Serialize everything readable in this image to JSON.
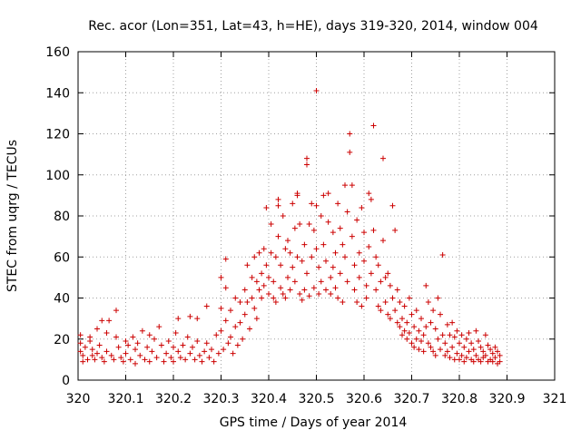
{
  "chart_data": {
    "type": "scatter",
    "title": "Rec. acor (Lon=351, Lat=43, h=HE), days 319-320, 2014, window 004",
    "xlabel": "GPS time / Days of year 2014",
    "ylabel": "STEC from uqrg / TECUs",
    "xlim": [
      320,
      321
    ],
    "ylim": [
      0,
      160
    ],
    "grid": true,
    "legend": "none",
    "marker": "+",
    "color": "#cc0000",
    "x_ticks": [
      320,
      320.1,
      320.2,
      320.3,
      320.4,
      320.5,
      320.6,
      320.7,
      320.8,
      320.9,
      321
    ],
    "x_tick_labels": [
      "320",
      "320.1",
      "320.2",
      "320.3",
      "320.4",
      "320.5",
      "320.6",
      "320.7",
      "320.8",
      "320.9",
      "321"
    ],
    "y_ticks": [
      0,
      20,
      40,
      60,
      80,
      100,
      120,
      140,
      160
    ],
    "y_tick_labels": [
      "0",
      "20",
      "40",
      "60",
      "80",
      "100",
      "120",
      "140",
      "160"
    ],
    "series": [
      {
        "name": "STEC",
        "points": [
          [
            320.005,
            22
          ],
          [
            320.005,
            18
          ],
          [
            320.005,
            14
          ],
          [
            320.01,
            12
          ],
          [
            320.01,
            9
          ],
          [
            320.015,
            16
          ],
          [
            320.02,
            10
          ],
          [
            320.025,
            21
          ],
          [
            320.025,
            19
          ],
          [
            320.03,
            15
          ],
          [
            320.03,
            12
          ],
          [
            320.035,
            10
          ],
          [
            320.04,
            25
          ],
          [
            320.04,
            13
          ],
          [
            320.045,
            17
          ],
          [
            320.05,
            29
          ],
          [
            320.05,
            11
          ],
          [
            320.055,
            9
          ],
          [
            320.06,
            23
          ],
          [
            320.06,
            14
          ],
          [
            320.065,
            29
          ],
          [
            320.07,
            12
          ],
          [
            320.075,
            10
          ],
          [
            320.08,
            34
          ],
          [
            320.08,
            21
          ],
          [
            320.085,
            16
          ],
          [
            320.09,
            11
          ],
          [
            320.095,
            9
          ],
          [
            320.1,
            19
          ],
          [
            320.1,
            13
          ],
          [
            320.105,
            17
          ],
          [
            320.11,
            10
          ],
          [
            320.115,
            21
          ],
          [
            320.12,
            15
          ],
          [
            320.12,
            8
          ],
          [
            320.125,
            18
          ],
          [
            320.13,
            12
          ],
          [
            320.135,
            24
          ],
          [
            320.14,
            10
          ],
          [
            320.145,
            16
          ],
          [
            320.15,
            22
          ],
          [
            320.15,
            9
          ],
          [
            320.155,
            14
          ],
          [
            320.16,
            20
          ],
          [
            320.165,
            11
          ],
          [
            320.17,
            26
          ],
          [
            320.175,
            17
          ],
          [
            320.18,
            9
          ],
          [
            320.185,
            13
          ],
          [
            320.19,
            19
          ],
          [
            320.195,
            11
          ],
          [
            320.2,
            16
          ],
          [
            320.2,
            9
          ],
          [
            320.205,
            23
          ],
          [
            320.21,
            30
          ],
          [
            320.21,
            14
          ],
          [
            320.215,
            11
          ],
          [
            320.22,
            17
          ],
          [
            320.225,
            10
          ],
          [
            320.23,
            21
          ],
          [
            320.235,
            31
          ],
          [
            320.235,
            13
          ],
          [
            320.24,
            16
          ],
          [
            320.245,
            10
          ],
          [
            320.25,
            30
          ],
          [
            320.25,
            19
          ],
          [
            320.255,
            12
          ],
          [
            320.26,
            9
          ],
          [
            320.265,
            14
          ],
          [
            320.27,
            36
          ],
          [
            320.27,
            18
          ],
          [
            320.275,
            11
          ],
          [
            320.28,
            15
          ],
          [
            320.285,
            9
          ],
          [
            320.29,
            22
          ],
          [
            320.295,
            13
          ],
          [
            320.3,
            50
          ],
          [
            320.3,
            35
          ],
          [
            320.3,
            24
          ],
          [
            320.305,
            15
          ],
          [
            320.31,
            59
          ],
          [
            320.31,
            45
          ],
          [
            320.31,
            29
          ],
          [
            320.315,
            18
          ],
          [
            320.32,
            34
          ],
          [
            320.32,
            21
          ],
          [
            320.325,
            13
          ],
          [
            320.33,
            40
          ],
          [
            320.33,
            26
          ],
          [
            320.335,
            17
          ],
          [
            320.34,
            38
          ],
          [
            320.34,
            28
          ],
          [
            320.345,
            20
          ],
          [
            320.35,
            44
          ],
          [
            320.35,
            32
          ],
          [
            320.355,
            56
          ],
          [
            320.355,
            38
          ],
          [
            320.36,
            25
          ],
          [
            320.365,
            50
          ],
          [
            320.365,
            40
          ],
          [
            320.37,
            60
          ],
          [
            320.37,
            35
          ],
          [
            320.375,
            48
          ],
          [
            320.375,
            30
          ],
          [
            320.38,
            62
          ],
          [
            320.38,
            44
          ],
          [
            320.385,
            52
          ],
          [
            320.385,
            40
          ],
          [
            320.39,
            64
          ],
          [
            320.39,
            46
          ],
          [
            320.395,
            84
          ],
          [
            320.395,
            56
          ],
          [
            320.4,
            42
          ],
          [
            320.4,
            50
          ],
          [
            320.405,
            76
          ],
          [
            320.405,
            62
          ],
          [
            320.41,
            48
          ],
          [
            320.41,
            40
          ],
          [
            320.415,
            60
          ],
          [
            320.415,
            38
          ],
          [
            320.42,
            88
          ],
          [
            320.42,
            85
          ],
          [
            320.42,
            70
          ],
          [
            320.425,
            56
          ],
          [
            320.425,
            45
          ],
          [
            320.43,
            80
          ],
          [
            320.43,
            42
          ],
          [
            320.435,
            64
          ],
          [
            320.435,
            40
          ],
          [
            320.44,
            68
          ],
          [
            320.44,
            50
          ],
          [
            320.445,
            62
          ],
          [
            320.445,
            44
          ],
          [
            320.45,
            86
          ],
          [
            320.45,
            55
          ],
          [
            320.455,
            74
          ],
          [
            320.455,
            48
          ],
          [
            320.46,
            91
          ],
          [
            320.46,
            90
          ],
          [
            320.46,
            60
          ],
          [
            320.465,
            76
          ],
          [
            320.465,
            42
          ],
          [
            320.47,
            58
          ],
          [
            320.47,
            39
          ],
          [
            320.475,
            66
          ],
          [
            320.475,
            44
          ],
          [
            320.48,
            108
          ],
          [
            320.48,
            105
          ],
          [
            320.48,
            52
          ],
          [
            320.485,
            76
          ],
          [
            320.485,
            41
          ],
          [
            320.49,
            86
          ],
          [
            320.49,
            60
          ],
          [
            320.495,
            73
          ],
          [
            320.495,
            45
          ],
          [
            320.5,
            141
          ],
          [
            320.5,
            85
          ],
          [
            320.5,
            64
          ],
          [
            320.505,
            55
          ],
          [
            320.505,
            42
          ],
          [
            320.51,
            80
          ],
          [
            320.51,
            48
          ],
          [
            320.515,
            90
          ],
          [
            320.515,
            66
          ],
          [
            320.52,
            44
          ],
          [
            320.52,
            58
          ],
          [
            320.525,
            91
          ],
          [
            320.525,
            77
          ],
          [
            320.53,
            50
          ],
          [
            320.53,
            42
          ],
          [
            320.535,
            72
          ],
          [
            320.535,
            55
          ],
          [
            320.54,
            62
          ],
          [
            320.54,
            45
          ],
          [
            320.545,
            86
          ],
          [
            320.545,
            40
          ],
          [
            320.55,
            74
          ],
          [
            320.55,
            52
          ],
          [
            320.555,
            66
          ],
          [
            320.555,
            38
          ],
          [
            320.56,
            95
          ],
          [
            320.56,
            60
          ],
          [
            320.565,
            82
          ],
          [
            320.565,
            48
          ],
          [
            320.57,
            120
          ],
          [
            320.57,
            111
          ],
          [
            320.575,
            95
          ],
          [
            320.575,
            70
          ],
          [
            320.58,
            56
          ],
          [
            320.58,
            44
          ],
          [
            320.585,
            78
          ],
          [
            320.585,
            38
          ],
          [
            320.59,
            62
          ],
          [
            320.59,
            50
          ],
          [
            320.595,
            84
          ],
          [
            320.595,
            36
          ],
          [
            320.6,
            72
          ],
          [
            320.6,
            58
          ],
          [
            320.605,
            46
          ],
          [
            320.605,
            40
          ],
          [
            320.61,
            91
          ],
          [
            320.61,
            65
          ],
          [
            320.615,
            88
          ],
          [
            320.615,
            52
          ],
          [
            320.62,
            124
          ],
          [
            320.62,
            73
          ],
          [
            320.625,
            60
          ],
          [
            320.625,
            44
          ],
          [
            320.63,
            56
          ],
          [
            320.63,
            36
          ],
          [
            320.635,
            48
          ],
          [
            320.635,
            34
          ],
          [
            320.64,
            108
          ],
          [
            320.64,
            68
          ],
          [
            320.645,
            50
          ],
          [
            320.645,
            38
          ],
          [
            320.65,
            52
          ],
          [
            320.65,
            32
          ],
          [
            320.655,
            46
          ],
          [
            320.655,
            30
          ],
          [
            320.66,
            85
          ],
          [
            320.66,
            40
          ],
          [
            320.665,
            73
          ],
          [
            320.665,
            34
          ],
          [
            320.67,
            44
          ],
          [
            320.67,
            28
          ],
          [
            320.675,
            38
          ],
          [
            320.675,
            26
          ],
          [
            320.68,
            30
          ],
          [
            320.68,
            22
          ],
          [
            320.685,
            36
          ],
          [
            320.685,
            24
          ],
          [
            320.69,
            28
          ],
          [
            320.69,
            20
          ],
          [
            320.695,
            40
          ],
          [
            320.695,
            23
          ],
          [
            320.7,
            32
          ],
          [
            320.7,
            18
          ],
          [
            320.705,
            26
          ],
          [
            320.705,
            16
          ],
          [
            320.71,
            34
          ],
          [
            320.71,
            20
          ],
          [
            320.715,
            24
          ],
          [
            320.715,
            15
          ],
          [
            320.72,
            30
          ],
          [
            320.72,
            19
          ],
          [
            320.725,
            22
          ],
          [
            320.725,
            14
          ],
          [
            320.73,
            46
          ],
          [
            320.73,
            26
          ],
          [
            320.735,
            38
          ],
          [
            320.735,
            18
          ],
          [
            320.74,
            28
          ],
          [
            320.74,
            16
          ],
          [
            320.745,
            34
          ],
          [
            320.745,
            14
          ],
          [
            320.75,
            25
          ],
          [
            320.75,
            12
          ],
          [
            320.755,
            40
          ],
          [
            320.755,
            20
          ],
          [
            320.76,
            32
          ],
          [
            320.76,
            15
          ],
          [
            320.765,
            61
          ],
          [
            320.765,
            22
          ],
          [
            320.77,
            18
          ],
          [
            320.77,
            12
          ],
          [
            320.775,
            27
          ],
          [
            320.775,
            14
          ],
          [
            320.78,
            22
          ],
          [
            320.78,
            11
          ],
          [
            320.785,
            28
          ],
          [
            320.785,
            16
          ],
          [
            320.79,
            21
          ],
          [
            320.79,
            10
          ],
          [
            320.795,
            24
          ],
          [
            320.795,
            13
          ],
          [
            320.8,
            18
          ],
          [
            320.8,
            10
          ],
          [
            320.805,
            22
          ],
          [
            320.805,
            12
          ],
          [
            320.81,
            16
          ],
          [
            320.81,
            9
          ],
          [
            320.815,
            20
          ],
          [
            320.815,
            11
          ],
          [
            320.82,
            23
          ],
          [
            320.82,
            14
          ],
          [
            320.825,
            18
          ],
          [
            320.825,
            10
          ],
          [
            320.83,
            15
          ],
          [
            320.83,
            9
          ],
          [
            320.835,
            24
          ],
          [
            320.835,
            12
          ],
          [
            320.84,
            19
          ],
          [
            320.84,
            10
          ],
          [
            320.845,
            16
          ],
          [
            320.845,
            9
          ],
          [
            320.85,
            14
          ],
          [
            320.85,
            11
          ],
          [
            320.855,
            22
          ],
          [
            320.855,
            12
          ],
          [
            320.86,
            17
          ],
          [
            320.86,
            9
          ],
          [
            320.865,
            15
          ],
          [
            320.865,
            10
          ],
          [
            320.87,
            13
          ],
          [
            320.87,
            9
          ],
          [
            320.875,
            16
          ],
          [
            320.875,
            11
          ],
          [
            320.88,
            14
          ],
          [
            320.88,
            8
          ],
          [
            320.885,
            12
          ],
          [
            320.885,
            9
          ]
        ]
      }
    ]
  }
}
